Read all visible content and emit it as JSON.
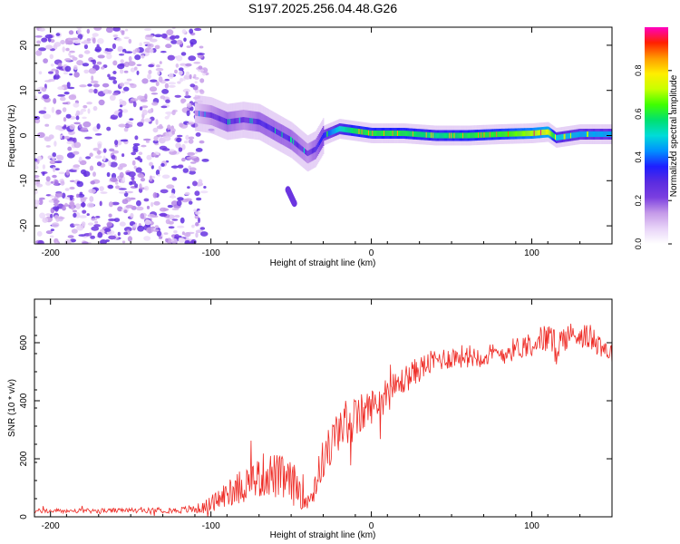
{
  "title": "S197.2025.256.04.48.G26",
  "colors": {
    "snr_line": "#ee2a24",
    "frame": "#000000",
    "colorbar": [
      "#ffffff",
      "#e8d4f8",
      "#c59ae8",
      "#7b3fe0",
      "#5a2be0",
      "#1e1eff",
      "#0090ff",
      "#00dcd8",
      "#00e070",
      "#40ff00",
      "#c8ff00",
      "#ffee00",
      "#ff9a00",
      "#ff2000",
      "#ff00c0"
    ]
  },
  "chart_data": [
    {
      "type": "heatmap",
      "name": "spectrogram",
      "title": "S197.2025.256.04.48.G26",
      "xlabel": "Height of straight line (km)",
      "ylabel": "Frequency (Hz)",
      "xlim": [
        -210,
        150
      ],
      "ylim": [
        -24,
        24
      ],
      "xticks": [
        -200,
        -100,
        0,
        100
      ],
      "yticks": [
        -20,
        -10,
        0,
        10,
        20
      ],
      "ridge": {
        "x": [
          -110,
          -100,
          -90,
          -80,
          -70,
          -60,
          -50,
          -40,
          -35,
          -30,
          -20,
          -10,
          0,
          20,
          40,
          60,
          80,
          100,
          110,
          115,
          130,
          150
        ],
        "freq": [
          5,
          4.5,
          3,
          3.5,
          3,
          1,
          -1,
          -4,
          -3,
          0,
          1.5,
          1,
          0.5,
          0.5,
          0,
          0,
          0.3,
          0.5,
          0.8,
          -0.5,
          0.3,
          0.3
        ],
        "amplitude": [
          0.15,
          0.25,
          0.3,
          0.25,
          0.3,
          0.3,
          0.3,
          0.25,
          0.3,
          0.35,
          0.5,
          0.6,
          0.6,
          0.6,
          0.55,
          0.6,
          0.62,
          0.7,
          0.75,
          0.5,
          0.45,
          0.45
        ]
      },
      "secondary_branch": {
        "x": [
          -52,
          -48
        ],
        "freq": [
          -12,
          -15
        ],
        "amplitude": 0.25
      },
      "colorbar": {
        "label": "Normalized spectral amplitude",
        "range": [
          0,
          1
        ],
        "ticks": [
          "0.0",
          "0.2",
          "0.4",
          "0.6",
          "0.8"
        ]
      }
    },
    {
      "type": "line",
      "name": "snr",
      "xlabel": "Height of straight line (km)",
      "ylabel": "SNR (10 * v/v)",
      "xlim": [
        -210,
        150
      ],
      "ylim": [
        0,
        750
      ],
      "xticks": [
        -200,
        -100,
        0,
        100
      ],
      "yticks": [
        0,
        200,
        400,
        600
      ],
      "series": [
        {
          "name": "SNR",
          "x": [
            -210,
            -180,
            -150,
            -120,
            -105,
            -95,
            -85,
            -75,
            -65,
            -55,
            -45,
            -38,
            -30,
            -25,
            -20,
            -15,
            -10,
            -5,
            0,
            10,
            20,
            30,
            40,
            50,
            60,
            70,
            80,
            90,
            100,
            110,
            115,
            120,
            130,
            140,
            150
          ],
          "y": [
            20,
            20,
            22,
            22,
            30,
            60,
            100,
            120,
            150,
            130,
            100,
            60,
            200,
            250,
            300,
            330,
            330,
            360,
            380,
            420,
            470,
            510,
            540,
            550,
            555,
            555,
            560,
            580,
            600,
            620,
            580,
            620,
            630,
            610,
            560
          ],
          "noise_amplitude": [
            8,
            8,
            8,
            10,
            20,
            40,
            60,
            70,
            80,
            80,
            70,
            50,
            70,
            80,
            80,
            80,
            80,
            70,
            60,
            60,
            50,
            45,
            40,
            40,
            40,
            40,
            40,
            40,
            45,
            50,
            60,
            50,
            45,
            45,
            40
          ]
        }
      ]
    }
  ]
}
